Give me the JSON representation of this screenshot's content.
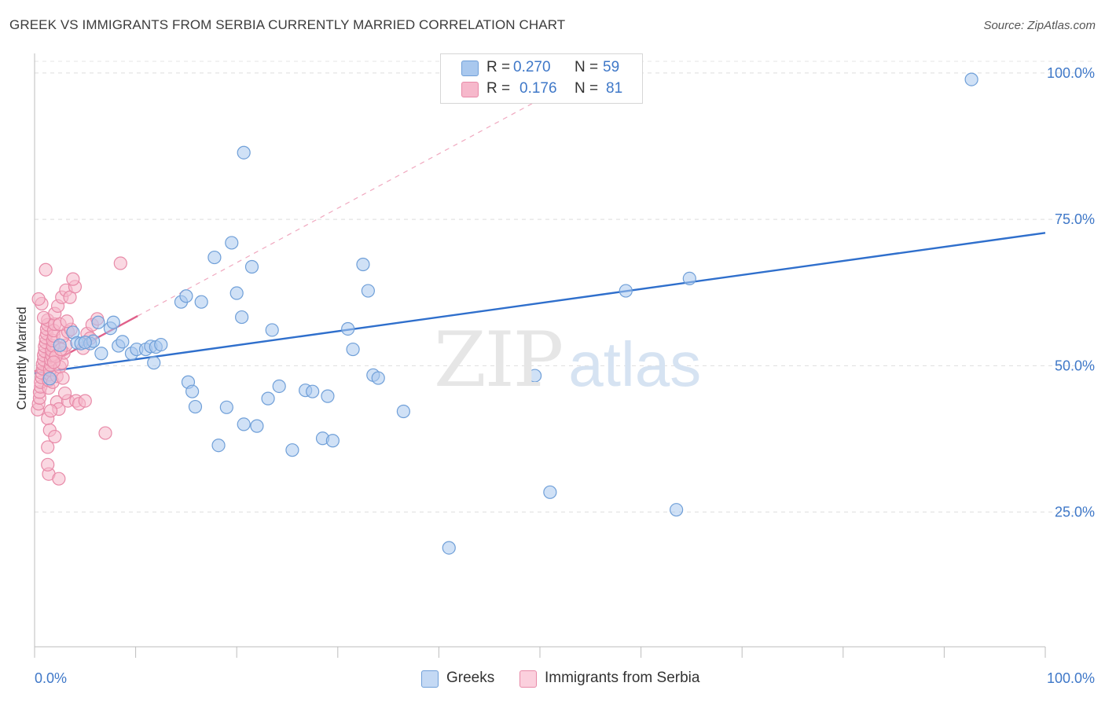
{
  "header": {
    "title": "GREEK VS IMMIGRANTS FROM SERBIA CURRENTLY MARRIED CORRELATION CHART",
    "source": "Source: ZipAtlas.com"
  },
  "watermark": {
    "zip": "ZIP",
    "atlas": "atlas"
  },
  "legend": {
    "r_label": "R =",
    "n_label": "N =",
    "rows": [
      {
        "r": "0.270",
        "n": "59",
        "color": "#a9c8ee",
        "border": "#6f9fd8"
      },
      {
        "r": "0.176",
        "n": "81",
        "color": "#f6b8cb",
        "border": "#e88aa8"
      }
    ]
  },
  "bottom_legend": [
    {
      "label": "Greeks",
      "color": "#c4d9f4",
      "border": "#6f9fd8"
    },
    {
      "label": "Immigrants from Serbia",
      "color": "#fbd0dd",
      "border": "#e88aa8"
    }
  ],
  "chart_data": {
    "type": "scatter",
    "title": "GREEK VS IMMIGRANTS FROM SERBIA CURRENTLY MARRIED CORRELATION CHART",
    "xlabel": "",
    "ylabel": "Currently Married",
    "xlim": [
      0,
      100
    ],
    "ylim": [
      2,
      102
    ],
    "x_tick_labels": [
      {
        "value": 0,
        "label": "0.0%"
      },
      {
        "value": 100,
        "label": "100.0%"
      }
    ],
    "y_tick_labels": [
      {
        "value": 25,
        "label": "25.0%"
      },
      {
        "value": 50,
        "label": "50.0%"
      },
      {
        "value": 75,
        "label": "75.0%"
      },
      {
        "value": 100,
        "label": "100.0%"
      }
    ],
    "grid": true,
    "series": [
      {
        "name": "Greeks",
        "color": "#6f9fd8",
        "fill": "#a9c8ee",
        "trend": {
          "x": [
            0,
            100
          ],
          "y": [
            48.7,
            72.7
          ],
          "style": "solid",
          "color": "#2f6fcc"
        },
        "points": [
          [
            1.5,
            47.8
          ],
          [
            2.5,
            53.5
          ],
          [
            3.8,
            55.7
          ],
          [
            4.2,
            53.9
          ],
          [
            4.6,
            53.8
          ],
          [
            5.5,
            53.8
          ],
          [
            5.8,
            54.2
          ],
          [
            5.0,
            54.0
          ],
          [
            6.6,
            52.1
          ],
          [
            6.3,
            57.4
          ],
          [
            7.5,
            56.4
          ],
          [
            7.8,
            57.4
          ],
          [
            8.3,
            53.4
          ],
          [
            8.7,
            54.1
          ],
          [
            9.6,
            52.1
          ],
          [
            10.1,
            52.8
          ],
          [
            11.0,
            52.8
          ],
          [
            11.5,
            53.3
          ],
          [
            11.8,
            50.5
          ],
          [
            12.0,
            53.2
          ],
          [
            12.5,
            53.6
          ],
          [
            14.5,
            60.9
          ],
          [
            15.0,
            61.9
          ],
          [
            15.2,
            47.2
          ],
          [
            15.6,
            45.6
          ],
          [
            15.9,
            43.0
          ],
          [
            16.5,
            60.9
          ],
          [
            17.8,
            68.5
          ],
          [
            18.2,
            36.4
          ],
          [
            19.0,
            42.9
          ],
          [
            19.5,
            71.0
          ],
          [
            20.0,
            62.4
          ],
          [
            20.5,
            58.3
          ],
          [
            21.5,
            66.9
          ],
          [
            22.0,
            39.7
          ],
          [
            23.1,
            44.4
          ],
          [
            23.5,
            56.1
          ],
          [
            24.2,
            46.5
          ],
          [
            25.5,
            35.6
          ],
          [
            20.7,
            40.0
          ],
          [
            26.8,
            45.8
          ],
          [
            27.5,
            45.6
          ],
          [
            28.5,
            37.6
          ],
          [
            29.0,
            44.8
          ],
          [
            29.5,
            37.2
          ],
          [
            31.0,
            56.3
          ],
          [
            31.5,
            52.8
          ],
          [
            32.5,
            67.3
          ],
          [
            33.0,
            62.8
          ],
          [
            33.5,
            48.4
          ],
          [
            34.0,
            47.9
          ],
          [
            20.7,
            86.4
          ],
          [
            36.5,
            42.2
          ],
          [
            41.0,
            18.9
          ],
          [
            49.5,
            48.3
          ],
          [
            51.0,
            28.4
          ],
          [
            58.5,
            62.8
          ],
          [
            63.5,
            25.4
          ],
          [
            64.8,
            64.9
          ],
          [
            92.7,
            98.9
          ]
        ]
      },
      {
        "name": "Immigrants from Serbia",
        "color": "#e88aa8",
        "fill": "#f6b8cb",
        "trend": {
          "x": [
            0,
            10.2
          ],
          "y": [
            49.0,
            58.5
          ],
          "style": "solid",
          "color": "#e0608a",
          "ext_x": [
            10.2,
            57.0
          ],
          "ext_y": [
            58.5,
            102.0
          ],
          "ext_style": "dashed"
        },
        "points": [
          [
            0.3,
            42.5
          ],
          [
            0.4,
            43.5
          ],
          [
            0.5,
            44.5
          ],
          [
            0.5,
            45.5
          ],
          [
            0.6,
            46.4
          ],
          [
            0.6,
            47.2
          ],
          [
            0.7,
            48.0
          ],
          [
            0.7,
            48.8
          ],
          [
            0.8,
            49.5
          ],
          [
            0.8,
            50.3
          ],
          [
            0.9,
            51.0
          ],
          [
            0.9,
            51.8
          ],
          [
            1.0,
            52.5
          ],
          [
            1.0,
            53.3
          ],
          [
            1.1,
            54.0
          ],
          [
            1.1,
            54.8
          ],
          [
            1.2,
            55.5
          ],
          [
            1.2,
            56.3
          ],
          [
            1.3,
            57.0
          ],
          [
            1.3,
            57.8
          ],
          [
            0.7,
            60.6
          ],
          [
            0.9,
            58.2
          ],
          [
            1.4,
            46.2
          ],
          [
            1.4,
            47.5
          ],
          [
            1.5,
            48.5
          ],
          [
            1.5,
            49.3
          ],
          [
            1.6,
            50.1
          ],
          [
            1.6,
            51.0
          ],
          [
            1.7,
            51.8
          ],
          [
            1.7,
            52.6
          ],
          [
            1.8,
            53.4
          ],
          [
            1.8,
            54.3
          ],
          [
            1.9,
            55.1
          ],
          [
            1.9,
            56.0
          ],
          [
            2.0,
            57.1
          ],
          [
            2.0,
            58.9
          ],
          [
            1.3,
            41.0
          ],
          [
            1.5,
            39.0
          ],
          [
            1.3,
            36.1
          ],
          [
            1.4,
            31.5
          ],
          [
            1.3,
            33.1
          ],
          [
            1.1,
            66.4
          ],
          [
            2.2,
            43.8
          ],
          [
            2.4,
            42.6
          ],
          [
            2.0,
            37.9
          ],
          [
            2.4,
            30.7
          ],
          [
            1.8,
            47.2
          ],
          [
            2.2,
            48.2
          ],
          [
            2.5,
            49.8
          ],
          [
            2.7,
            50.5
          ],
          [
            2.9,
            52.2
          ],
          [
            3.1,
            53.5
          ],
          [
            2.8,
            55.0
          ],
          [
            3.3,
            55.8
          ],
          [
            2.5,
            57.1
          ],
          [
            3.6,
            56.2
          ],
          [
            3.2,
            57.6
          ],
          [
            2.3,
            60.2
          ],
          [
            2.7,
            61.7
          ],
          [
            3.1,
            62.9
          ],
          [
            3.5,
            61.7
          ],
          [
            4.0,
            63.5
          ],
          [
            3.8,
            64.8
          ],
          [
            3.3,
            44.0
          ],
          [
            4.1,
            44.0
          ],
          [
            4.4,
            43.5
          ],
          [
            4.8,
            53.0
          ],
          [
            5.2,
            55.5
          ],
          [
            5.5,
            54.7
          ],
          [
            5.7,
            57.0
          ],
          [
            6.2,
            58.0
          ],
          [
            5.0,
            44.0
          ],
          [
            7.0,
            38.5
          ],
          [
            8.5,
            67.5
          ],
          [
            2.1,
            51.6
          ],
          [
            2.6,
            52.8
          ],
          [
            0.4,
            61.4
          ],
          [
            1.9,
            50.6
          ],
          [
            2.8,
            47.9
          ],
          [
            3.0,
            45.3
          ],
          [
            1.6,
            42.3
          ]
        ]
      }
    ]
  }
}
